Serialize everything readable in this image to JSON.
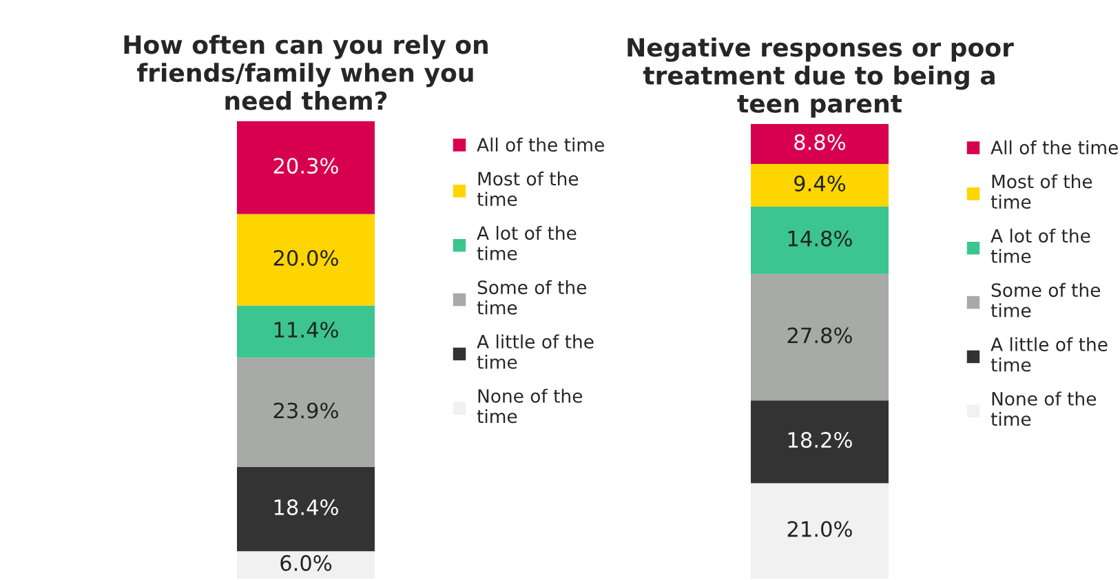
{
  "chart_data": [
    {
      "type": "bar",
      "stacked": true,
      "title": "How often can you rely on\nfriends/family when you\nneed them?",
      "categories": [
        null
      ],
      "legend": "right",
      "series": [
        {
          "name": "None of the\ntime",
          "color": "#f1f1f1",
          "values": [
            6.0
          ],
          "value_labels": [
            "6.0%"
          ]
        },
        {
          "name": "A little of the\ntime",
          "color": "#333333",
          "values": [
            18.4
          ],
          "value_labels": [
            "18.4%"
          ]
        },
        {
          "name": "Some of the\ntime",
          "color": "#a8aaa7",
          "values": [
            23.9
          ],
          "value_labels": [
            "23.9%"
          ]
        },
        {
          "name": "A lot of the\ntime",
          "color": "#3cc58e",
          "values": [
            11.4
          ],
          "value_labels": [
            "11.4%"
          ]
        },
        {
          "name": "Most of the\ntime",
          "color": "#ffd500",
          "values": [
            20.0
          ],
          "value_labels": [
            "20.0%"
          ]
        },
        {
          "name": "All of the time",
          "color": "#d6004f",
          "values": [
            20.3
          ],
          "value_labels": [
            "20.3%"
          ]
        }
      ]
    },
    {
      "type": "bar",
      "stacked": true,
      "title": "Negative responses or poor\ntreatment due to being a\nteen parent",
      "categories": [
        null
      ],
      "legend": "right",
      "series": [
        {
          "name": "None of the\ntime",
          "color": "#f1f1f1",
          "values": [
            21.0
          ],
          "value_labels": [
            "21.0%"
          ]
        },
        {
          "name": "A little of the\ntime",
          "color": "#333333",
          "values": [
            18.2
          ],
          "value_labels": [
            "18.2%"
          ]
        },
        {
          "name": "Some of the\ntime",
          "color": "#a8aaa7",
          "values": [
            27.8
          ],
          "value_labels": [
            "27.8%"
          ]
        },
        {
          "name": "A lot of the\ntime",
          "color": "#3cc58e",
          "values": [
            14.8
          ],
          "value_labels": [
            "14.8%"
          ]
        },
        {
          "name": "Most of the\ntime",
          "color": "#ffd500",
          "values": [
            9.4
          ],
          "value_labels": [
            "9.4%"
          ]
        },
        {
          "name": "All of the time",
          "color": "#d6004f",
          "values": [
            8.8
          ],
          "value_labels": [
            "8.8%"
          ]
        }
      ]
    }
  ]
}
